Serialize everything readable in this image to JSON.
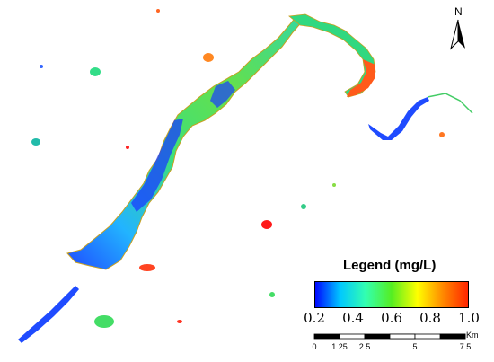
{
  "legend": {
    "title": "Legend (mg/L)",
    "min": 0.2,
    "max": 1.0,
    "ticks": [
      "0.2",
      "0.4",
      "0.6",
      "0.8",
      "1.0"
    ],
    "colors": [
      "#0000ff",
      "#00c8ff",
      "#33ffb0",
      "#55ee22",
      "#ffff00",
      "#ff8800",
      "#ff2200"
    ]
  },
  "scale_bar": {
    "unit": "Km",
    "labels": [
      "0",
      "1.25",
      "2.5",
      "5",
      "7.5"
    ],
    "values": [
      0,
      1.25,
      2.5,
      5,
      7.5
    ]
  },
  "north_arrow": {
    "label": "N"
  }
}
